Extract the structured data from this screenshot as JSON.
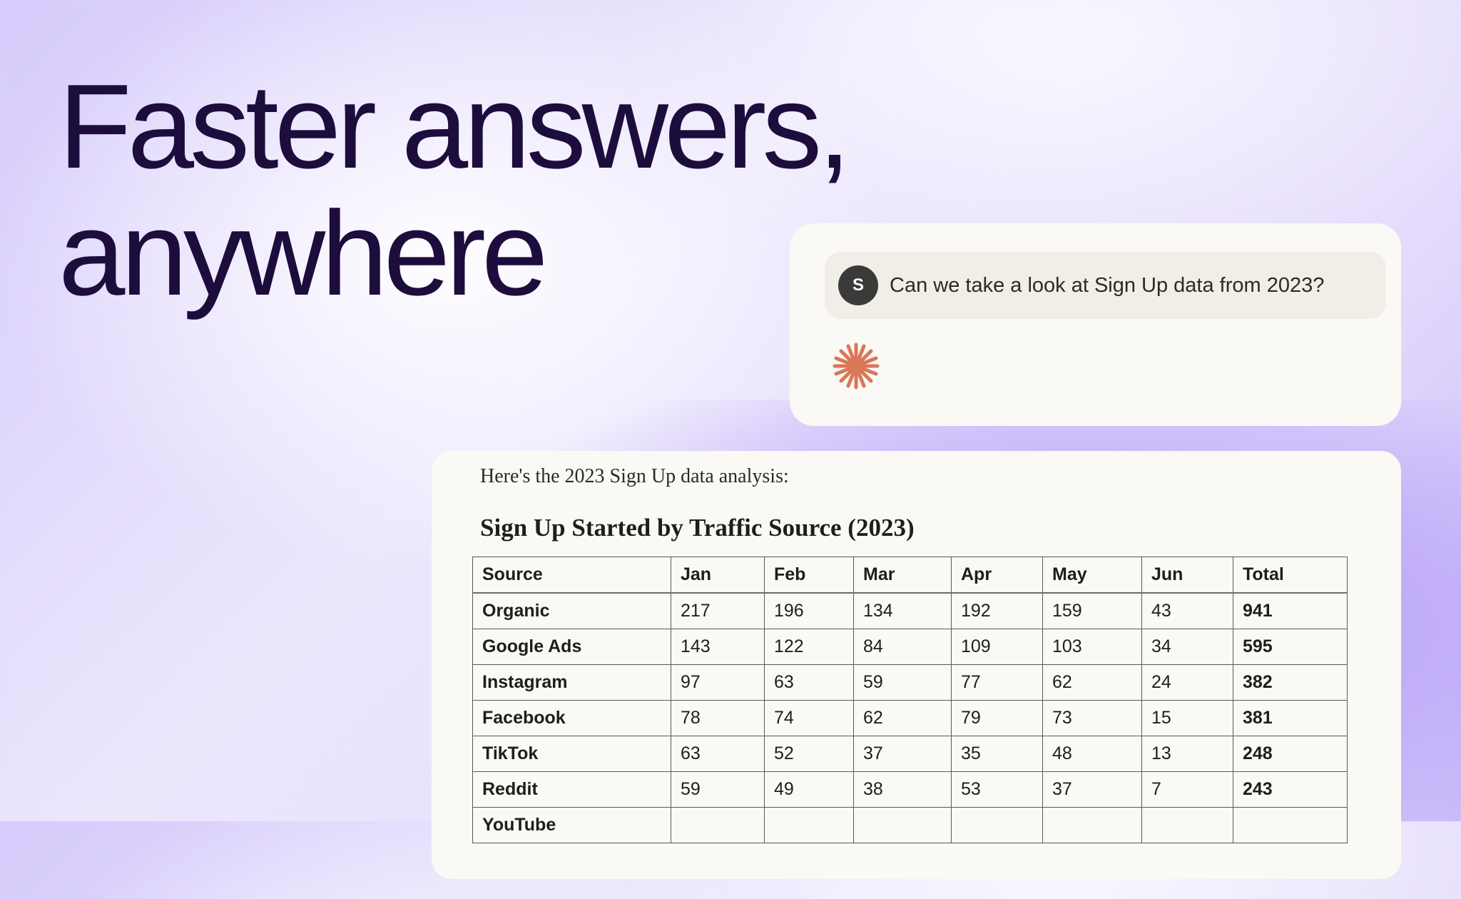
{
  "headline": {
    "line1": "Faster answers,",
    "line2": "anywhere"
  },
  "chat": {
    "avatar_initial": "S",
    "message": "Can we take a look at Sign Up data from 2023?",
    "assistant_icon": "starburst-icon",
    "accent": "#d97757"
  },
  "response": {
    "intro": "Here's the 2023 Sign Up data analysis:",
    "title": "Sign Up Started by Traffic Source (2023)",
    "columns": [
      "Source",
      "Jan",
      "Feb",
      "Mar",
      "Apr",
      "May",
      "Jun",
      "Total"
    ],
    "rows": [
      [
        "Organic",
        "217",
        "196",
        "134",
        "192",
        "159",
        "43",
        "941"
      ],
      [
        "Google Ads",
        "143",
        "122",
        "84",
        "109",
        "103",
        "34",
        "595"
      ],
      [
        "Instagram",
        "97",
        "63",
        "59",
        "77",
        "62",
        "24",
        "382"
      ],
      [
        "Facebook",
        "78",
        "74",
        "62",
        "79",
        "73",
        "15",
        "381"
      ],
      [
        "TikTok",
        "63",
        "52",
        "37",
        "35",
        "48",
        "13",
        "248"
      ],
      [
        "Reddit",
        "59",
        "49",
        "38",
        "53",
        "37",
        "7",
        "243"
      ],
      [
        "YouTube",
        "",
        "",
        "",
        "",
        "",
        "",
        ""
      ]
    ]
  }
}
